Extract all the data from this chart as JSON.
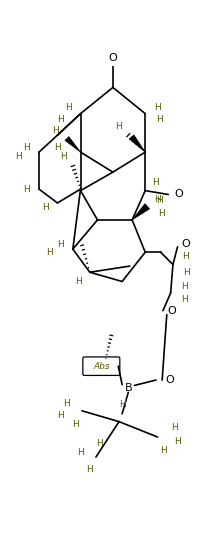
{
  "bg_color": "#ffffff",
  "line_color": "#000000",
  "text_color": "#5a5a00",
  "figsize": [
    2.21,
    5.49
  ],
  "dpi": 100,
  "xlim": [
    0,
    221
  ],
  "ylim": [
    0,
    549
  ]
}
